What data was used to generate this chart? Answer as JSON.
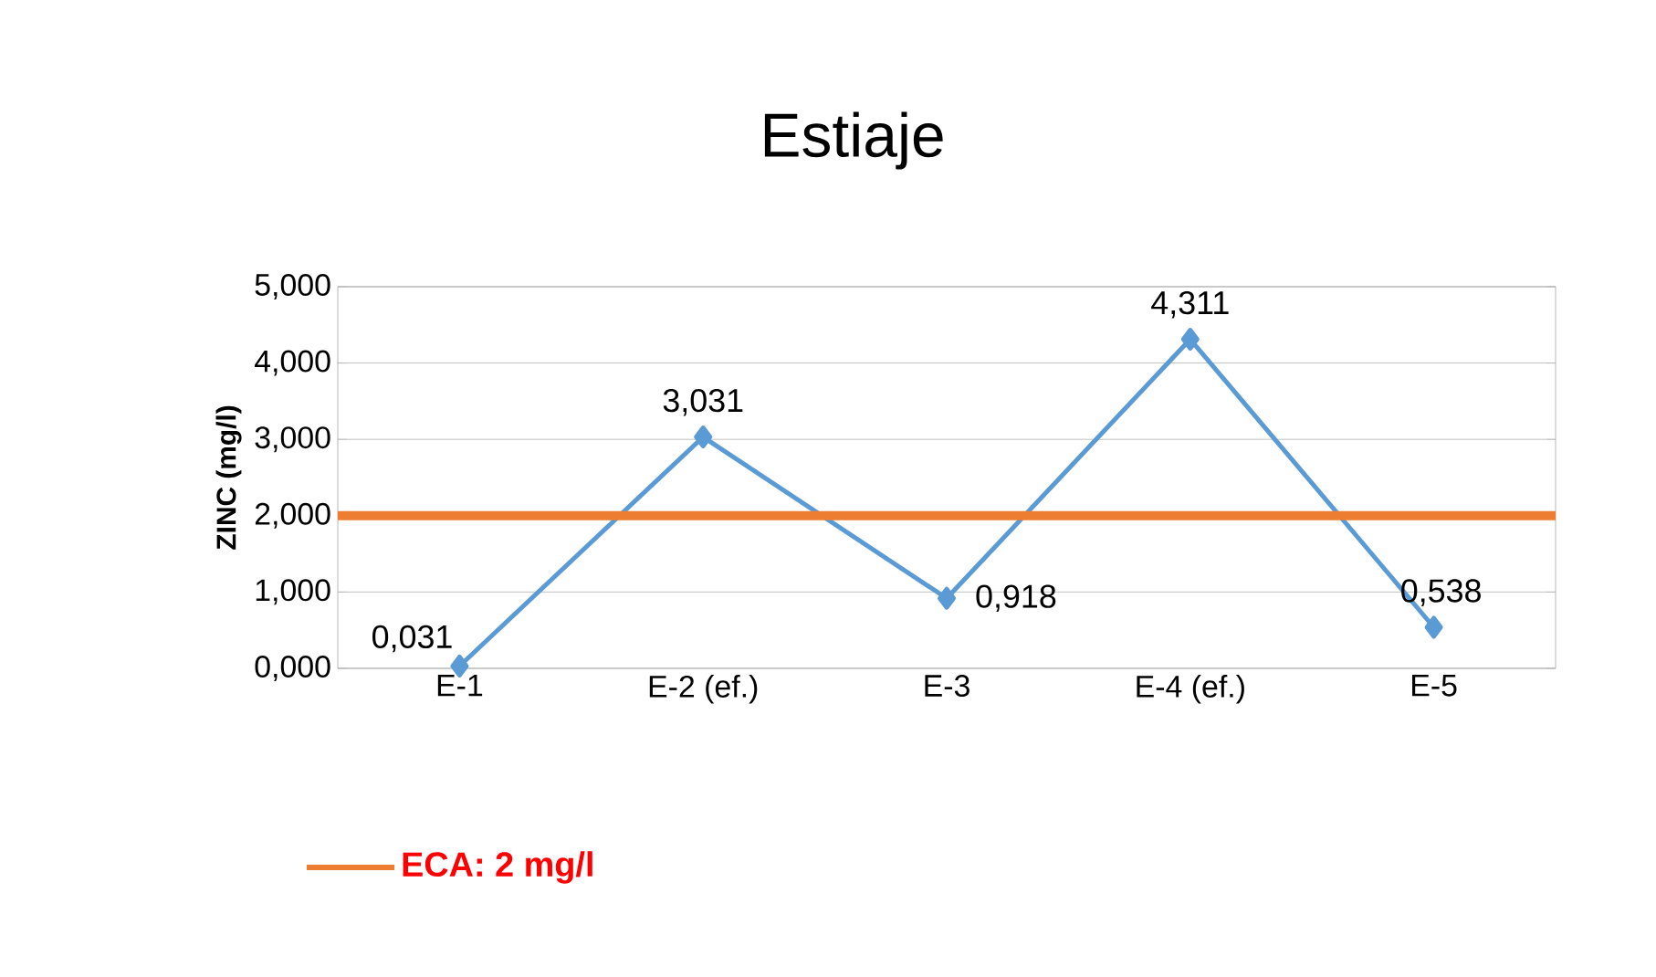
{
  "chart_data": {
    "type": "line",
    "title": "Estiaje",
    "ylabel": "ZINC (mg/l)",
    "categories": [
      "E-1",
      "E-2 (ef.)",
      "E-3",
      "E-4 (ef.)",
      "E-5"
    ],
    "series": [
      {
        "color": "#5b9bd5",
        "values": [
          0.031,
          3.031,
          0.918,
          4.311,
          0.538
        ],
        "value_labels": [
          "0,031",
          "3,031",
          "0,918",
          "4,311",
          "0,538"
        ]
      }
    ],
    "ylim": [
      0,
      5
    ],
    "yticks": [
      {
        "value": 0,
        "label": "0,000"
      },
      {
        "value": 1,
        "label": "1,000"
      },
      {
        "value": 2,
        "label": "2,000"
      },
      {
        "value": 3,
        "label": "3,000"
      },
      {
        "value": 4,
        "label": "4,000"
      },
      {
        "value": 5,
        "label": "5,000"
      }
    ],
    "ref_lines": [
      {
        "axis": "y",
        "value": 2,
        "label": "ECA: 2 mg/l",
        "color": "#ed7d31"
      }
    ],
    "grid": "y",
    "marker": "diamond",
    "line_style": "solid",
    "legend": "bottom left"
  }
}
